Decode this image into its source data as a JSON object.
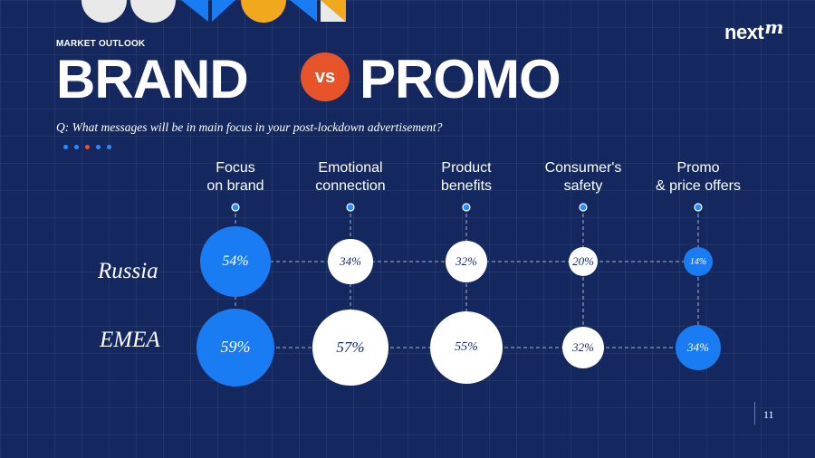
{
  "header": {
    "eyebrow": "MARKET OUTLOOK",
    "title_left": "BRAND",
    "vs": "vs",
    "title_right": "PROMO",
    "question": "Q: What messages will be in main focus in your post-lockdown advertisement?",
    "logo": "next",
    "logo_sup": "m"
  },
  "columns": [
    "Focus\non brand",
    "Emotional\nconnection",
    "Product\nbenefits",
    "Consumer's\nsafety",
    "Promo\n& price offers"
  ],
  "rows": [
    {
      "label": "Russia",
      "values": [
        "54%",
        "34%",
        "32%",
        "20%",
        "14%"
      ]
    },
    {
      "label": "EMEA",
      "values": [
        "59%",
        "57%",
        "55%",
        "32%",
        "34%"
      ]
    }
  ],
  "colors": {
    "background": "#14285f",
    "accent_blue": "#1a7cf2",
    "accent_orange": "#e8542a",
    "bubble_white": "#ffffff"
  },
  "footer": {
    "page_number": "11"
  }
}
